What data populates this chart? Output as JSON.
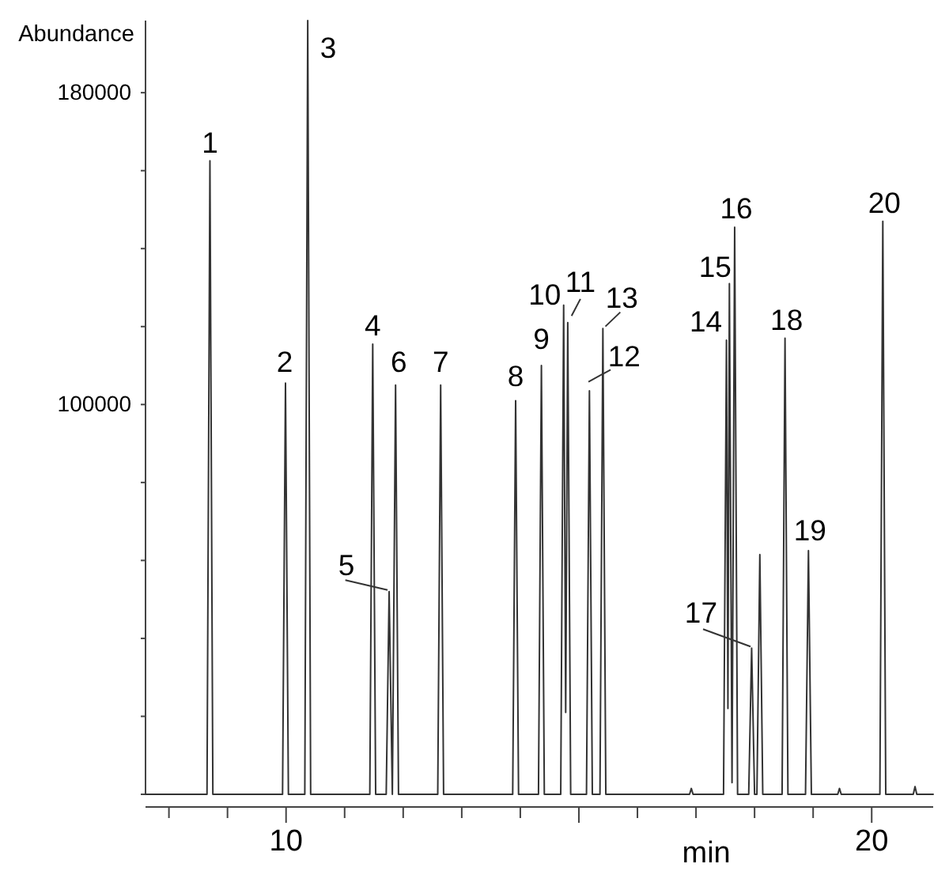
{
  "chart_data": {
    "type": "line",
    "xlabel": "min",
    "ylabel": "Abundance",
    "color": "#333333",
    "xlim": [
      7.6,
      21.05
    ],
    "ylim": [
      0,
      198500
    ],
    "xticks": [
      {
        "value": 8,
        "label": null
      },
      {
        "value": 9,
        "label": null
      },
      10,
      {
        "value": 11,
        "label": null
      },
      {
        "value": 12,
        "label": null
      },
      {
        "value": 13,
        "label": null
      },
      {
        "value": 14,
        "label": null
      },
      {
        "value": 15,
        "label": null
      },
      {
        "value": 16,
        "label": null
      },
      {
        "value": 17,
        "label": null
      },
      {
        "value": 18,
        "label": null
      },
      {
        "value": 19,
        "label": null
      },
      20
    ],
    "yticks": [
      {
        "value": 0,
        "label": null
      },
      {
        "value": 20000,
        "label": null
      },
      {
        "value": 40000,
        "label": null
      },
      {
        "value": 60000,
        "label": null
      },
      {
        "value": 80000,
        "label": null
      },
      100000,
      {
        "value": 120000,
        "label": null
      },
      {
        "value": 140000,
        "label": null
      },
      {
        "value": 160000,
        "label": null
      },
      180000
    ],
    "x": [
      7.6,
      8.65,
      8.7,
      8.75,
      9.94,
      9.99,
      10.04,
      10.32,
      10.37,
      10.42,
      11.43,
      11.48,
      11.53,
      11.71,
      11.76,
      11.815,
      11.87,
      11.92,
      12.59,
      12.64,
      12.69,
      13.87,
      13.92,
      13.97,
      14.31,
      14.36,
      14.41,
      14.69,
      14.74,
      14.775,
      14.81,
      14.86,
      15.13,
      15.18,
      15.23,
      15.36,
      15.41,
      15.46,
      16.89,
      16.92,
      16.95,
      17.47,
      17.52,
      17.545,
      17.57,
      17.615,
      17.66,
      17.71,
      17.9,
      17.95,
      18.0,
      18.04,
      18.09,
      18.14,
      18.47,
      18.52,
      18.57,
      18.87,
      18.92,
      18.97,
      19.42,
      19.45,
      19.48,
      20.14,
      20.19,
      20.24,
      20.71,
      20.74,
      20.77,
      21.05
    ],
    "values": [
      0,
      0,
      162500,
      0,
      0,
      105500,
      0,
      0,
      198500,
      0,
      0,
      115500,
      0,
      0,
      52000,
      0,
      105000,
      0,
      0,
      105000,
      0,
      0,
      101000,
      0,
      0,
      110000,
      0,
      0,
      125500,
      21000,
      121000,
      0,
      0,
      103500,
      0,
      0,
      119500,
      0,
      0,
      1500,
      0,
      0,
      116500,
      22000,
      131000,
      3000,
      145500,
      0,
      0,
      37500,
      0,
      0,
      61500,
      0,
      0,
      117000,
      0,
      0,
      62500,
      0,
      0,
      1500,
      0,
      0,
      147000,
      0,
      0,
      2000,
      0,
      0
    ],
    "annotations": [
      {
        "text": "1",
        "x": 8.7,
        "y": 162500
      },
      {
        "text": "2",
        "x": 9.99,
        "y": 105500
      },
      {
        "text": "3",
        "x": 10.37,
        "y": 198500
      },
      {
        "text": "4",
        "x": 11.48,
        "y": 115500
      },
      {
        "text": "5",
        "x": 11.76,
        "y": 52000
      },
      {
        "text": "6",
        "x": 11.87,
        "y": 105000
      },
      {
        "text": "7",
        "x": 12.64,
        "y": 105000
      },
      {
        "text": "8",
        "x": 13.92,
        "y": 101000
      },
      {
        "text": "9",
        "x": 14.36,
        "y": 110000
      },
      {
        "text": "10",
        "x": 14.74,
        "y": 125500
      },
      {
        "text": "11",
        "x": 14.81,
        "y": 121000
      },
      {
        "text": "12",
        "x": 15.18,
        "y": 103500
      },
      {
        "text": "13",
        "x": 15.41,
        "y": 119500
      },
      {
        "text": "14",
        "x": 17.52,
        "y": 116500
      },
      {
        "text": "15",
        "x": 17.57,
        "y": 131000
      },
      {
        "text": "16",
        "x": 17.66,
        "y": 145500
      },
      {
        "text": "17",
        "x": 17.95,
        "y": 37500
      },
      {
        "text": "18",
        "x": 18.52,
        "y": 117000
      },
      {
        "text": "19",
        "x": 18.92,
        "y": 62500
      },
      {
        "text": "20",
        "x": 20.19,
        "y": 147000
      }
    ]
  }
}
